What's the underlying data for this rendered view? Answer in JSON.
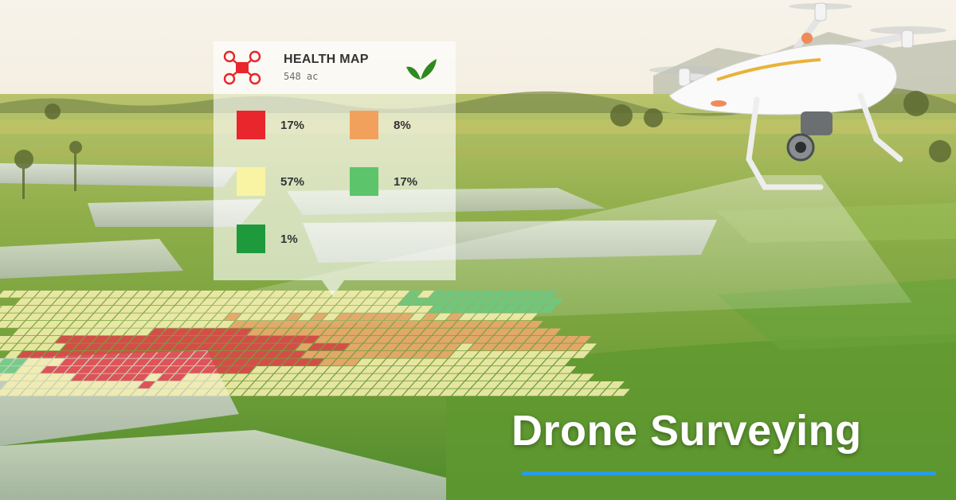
{
  "card": {
    "title": "HEALTH MAP",
    "subtitle": "548 ac",
    "logo_icon": "drone-logo-icon",
    "badge_icon": "leaf-icon"
  },
  "legend": [
    {
      "label": "17%",
      "color": "#e8262b"
    },
    {
      "label": "8%",
      "color": "#f2a15c"
    },
    {
      "label": "57%",
      "color": "#f9f4a3"
    },
    {
      "label": "17%",
      "color": "#5cc46a"
    },
    {
      "label": "1%",
      "color": "#1e9a3c"
    }
  ],
  "headline": "Drone Surveying",
  "colors": {
    "accent_underline": "#2b9be0",
    "leaf": "#2e8a1e",
    "logo": "#e8262b",
    "tile_red": "#e0424a",
    "tile_orange": "#f0a870",
    "tile_yellow": "#f6efb0",
    "tile_green": "#6cc882"
  }
}
